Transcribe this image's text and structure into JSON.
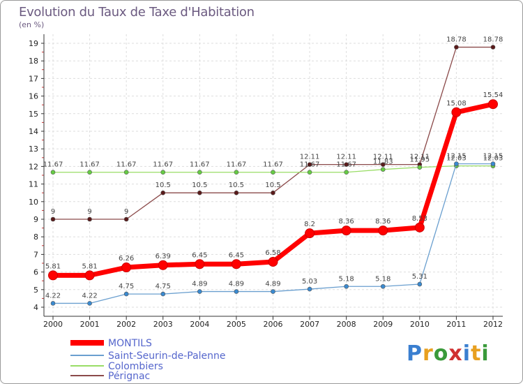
{
  "chart_data": {
    "type": "line",
    "title": "Evolution du Taux de Taxe d'Habitation",
    "subtitle": "(en %)",
    "x": [
      "2000",
      "2001",
      "2002",
      "2003",
      "2004",
      "2005",
      "2006",
      "2007",
      "2008",
      "2009",
      "2010",
      "2011",
      "2012"
    ],
    "ylim": [
      4,
      19
    ],
    "yticks": [
      "4",
      "5",
      "6",
      "7",
      "8",
      "9",
      "10",
      "11",
      "12",
      "13",
      "14",
      "15",
      "16",
      "17",
      "18",
      "19"
    ],
    "grid": true,
    "legend_position": "bottom-left",
    "series": [
      {
        "name": "MONTILS",
        "color": "#ff0000",
        "values": [
          5.81,
          5.81,
          6.26,
          6.39,
          6.45,
          6.45,
          6.58,
          8.2,
          8.36,
          8.36,
          8.53,
          15.08,
          15.54
        ],
        "labels": [
          "5.81",
          "5.81",
          "6.26",
          "6.39",
          "6.45",
          "6.45",
          "6.58",
          "8.2",
          "8.36",
          "8.36",
          "8.53",
          "15.08",
          "15.54"
        ]
      },
      {
        "name": "Saint-Seurin-de-Palenne",
        "color": "#6a9fcf",
        "values": [
          4.22,
          4.22,
          4.75,
          4.75,
          4.89,
          4.89,
          4.89,
          5.03,
          5.18,
          5.18,
          5.31,
          12.15,
          12.15
        ],
        "labels": [
          "4.22",
          "4.22",
          "4.75",
          "4.75",
          "4.89",
          "4.89",
          "4.89",
          "5.03",
          "5.18",
          "5.18",
          "5.31",
          "12.15",
          "12.15"
        ]
      },
      {
        "name": "Colombiers",
        "color": "#99dd66",
        "values": [
          11.67,
          11.67,
          11.67,
          11.67,
          11.67,
          11.67,
          11.67,
          11.67,
          11.67,
          11.83,
          11.95,
          12.03,
          12.03
        ],
        "labels": [
          "11.67",
          "11.67",
          "11.67",
          "11.67",
          "11.67",
          "11.67",
          "11.67",
          "11.67",
          "11.67",
          "11.83",
          "11.95",
          "12.03",
          "12.03"
        ]
      },
      {
        "name": "Pérignac",
        "color": "#8b4a4a",
        "values": [
          9,
          9,
          9,
          10.5,
          10.5,
          10.5,
          10.5,
          12.11,
          12.11,
          12.11,
          12.11,
          18.78,
          18.78
        ],
        "labels": [
          "9",
          "9",
          "9",
          "10.5",
          "10.5",
          "10.5",
          "10.5",
          "12.11",
          "12.11",
          "12.11",
          "12.11",
          "18.78",
          "18.78"
        ]
      }
    ]
  },
  "logo": {
    "letters": [
      "P",
      "r",
      "o",
      "x",
      "i",
      "t",
      "i"
    ],
    "colors": [
      "#3a7fd0",
      "#e8a020",
      "#3a9a3a",
      "#d03030",
      "#3a7fd0",
      "#e8a020",
      "#3a9a3a"
    ]
  }
}
